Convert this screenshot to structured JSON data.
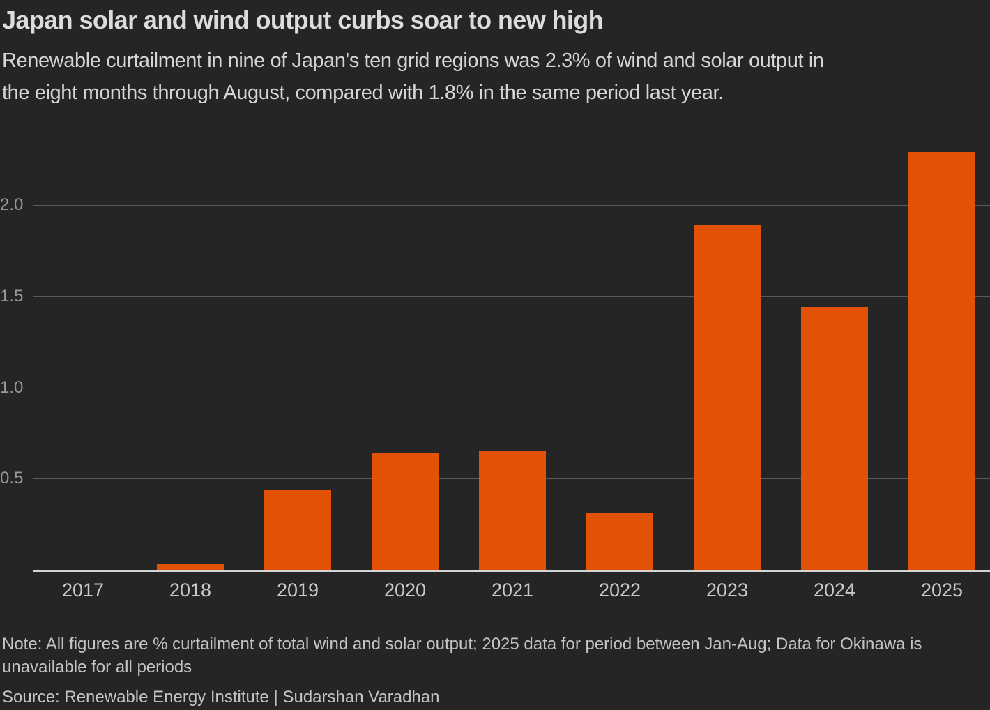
{
  "header": {
    "title": "Japan solar and wind output curbs soar to new high",
    "subtitle_lines": [
      "Renewable curtailment in nine of Japan's ten grid regions was 2.3% of wind and solar output in",
      "the eight months through August, compared with 1.8% in the same period last year."
    ]
  },
  "chart_data": {
    "type": "bar",
    "title": "Japan solar and wind output curbs soar to new high",
    "subtitle": "Renewable curtailment in nine of Japan's ten grid regions was 2.3% of wind and solar output in the eight months through August, compared with 1.8% in the same period last year.",
    "categories": [
      "2017",
      "2018",
      "2019",
      "2020",
      "2021",
      "2022",
      "2023",
      "2024",
      "2025"
    ],
    "values": [
      0,
      0.03,
      0.44,
      0.64,
      0.65,
      0.31,
      1.89,
      1.44,
      2.29
    ],
    "xlabel": "",
    "ylabel": "",
    "unit": "% curtailment of total wind and solar output",
    "ylim": [
      0,
      2.42
    ],
    "ytick_labels": [
      "0.5",
      "1.0",
      "1.5",
      "2.0"
    ],
    "ytick_values": [
      0.5,
      1.0,
      1.5,
      2.0
    ],
    "grid": true,
    "legend_position": "none",
    "bar_color": "#e25307"
  },
  "footer": {
    "note_lines": [
      "Note: All figures are % curtailment of total wind and solar output; 2025 data for period between Jan-Aug; Data for Okinawa is",
      "unavailable for all periods"
    ],
    "source": "Source: Renewable Energy Institute | Sudarshan Varadhan"
  },
  "colors": {
    "background": "#252525",
    "bar": "#e25307",
    "gridline": "#5a5a5a",
    "baseline": "#d4d4d4",
    "title_text": "#dcdcdc",
    "subtitle_text": "#d5d5d5",
    "ytick_text": "#979797",
    "xtick_text": "#c9c9c9",
    "footnote_text": "#c4c4c4"
  }
}
